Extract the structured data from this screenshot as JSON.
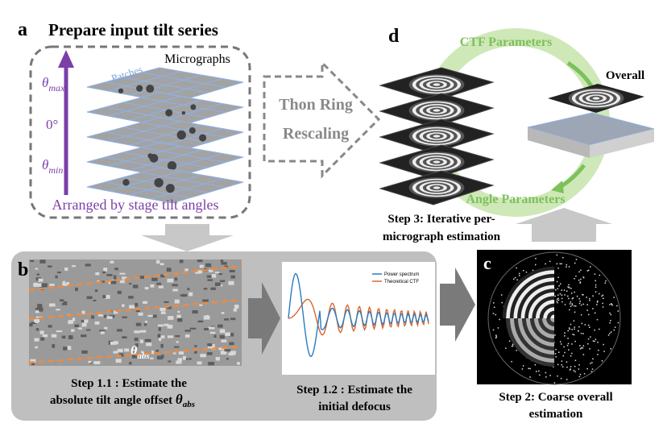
{
  "panel_a": {
    "letter": "a",
    "title": "Prepare input tilt series",
    "micrographs_label": "Micrographs",
    "patches_label": "Patches",
    "theta_max": {
      "symbol": "θ",
      "sub": "max"
    },
    "zero_label": "0°",
    "theta_min": {
      "symbol": "θ",
      "sub": "min"
    },
    "caption": "Arranged by stage tilt angles"
  },
  "rescale_arrow": {
    "lines": [
      "Thon Ring",
      "Rescaling"
    ]
  },
  "panel_d": {
    "letter": "d",
    "ctf_label": "CTF Parameters",
    "overall_label": "Overall",
    "angle_label": "Angle Parameters",
    "caption": [
      "Step 3: Iterative per-",
      "micrograph estimation"
    ]
  },
  "panel_b": {
    "letter": "b",
    "theta_abs": {
      "symbol": "θ",
      "sub": "abs"
    },
    "step1_1": {
      "lines": [
        "Step 1.1 : Estimate the",
        "absolute tilt angle offset "
      ],
      "symbol": "θ",
      "sub": "abs"
    },
    "plot_legend": [
      "Power spectrum",
      "Theoretical CTF"
    ],
    "step1_2": [
      "Step 1.2 : Estimate the",
      "initial defocus"
    ]
  },
  "panel_c": {
    "letter": "c",
    "caption": [
      "Step 2: Coarse overall",
      "estimation"
    ]
  }
}
